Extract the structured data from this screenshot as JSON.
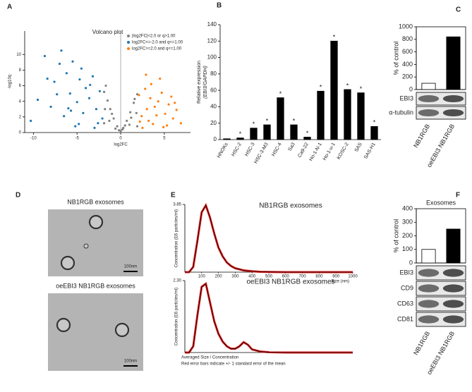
{
  "chart_data": [
    {
      "type": "scatter",
      "panel": "A",
      "title": "Volcano plot",
      "xlabel": "log2FC",
      "ylabel": "-log10q",
      "xlim": [
        -11,
        8
      ],
      "ylim": [
        0,
        13
      ],
      "xticks": [
        -10,
        -5,
        0,
        5
      ],
      "yticks": [
        0,
        2,
        4,
        6,
        8,
        10
      ],
      "legend": "top-right",
      "series": [
        {
          "name": "|log2FC|<2.0 or q>1.00",
          "color": "#808080",
          "x": [
            -1.9,
            -1.5,
            -1.2,
            -0.8,
            -0.4,
            0,
            0.3,
            0.7,
            1.1,
            1.5,
            1.9,
            -1.8,
            -1.3,
            -0.6,
            0.5,
            1.2,
            1.8,
            -1.7,
            -1,
            1,
            1.6,
            -0.2,
            0.2,
            -1.9,
            1.9
          ],
          "values": [
            5.2,
            4.1,
            3.0,
            1.8,
            0.8,
            0.2,
            0.6,
            1.5,
            2.6,
            3.8,
            4.9,
            3.0,
            1.5,
            0.5,
            0.9,
            1.9,
            2.5,
            6.0,
            2.4,
            1.0,
            4.3,
            0.3,
            0.4,
            1.2,
            0.8
          ]
        },
        {
          "name": "log2FC<=-2.0 and q<=1.00",
          "color": "#1f77b4",
          "x": [
            -10.3,
            -9.5,
            -8.7,
            -8,
            -7.6,
            -7,
            -6.5,
            -6.2,
            -5.8,
            -5.5,
            -5,
            -4.7,
            -4.3,
            -4,
            -3.6,
            -3.2,
            -2.8,
            -2.4,
            -2.1,
            -6.8,
            -5.2,
            -4.5,
            -3.5,
            -2.6,
            -7.3,
            -6,
            -3,
            -8.4,
            -4.8,
            -5.7
          ],
          "values": [
            1.5,
            4.2,
            9.8,
            3.3,
            6.5,
            8.8,
            2.1,
            7.6,
            5.0,
            9.1,
            3.9,
            6.8,
            2.5,
            5.7,
            4.4,
            7.2,
            3.0,
            5.3,
            1.8,
            10.5,
            0.8,
            8.2,
            6.1,
            1.2,
            4.9,
            3.1,
            0.6,
            6.9,
            1.1,
            2.8
          ]
        },
        {
          "name": "log2FC>=2.0 and q<=1.00",
          "color": "#ff7f0e",
          "x": [
            2.1,
            2.4,
            2.8,
            3.2,
            3.5,
            3.9,
            4.3,
            4.7,
            5.1,
            5.5,
            6,
            6.4,
            6.9,
            2.5,
            3,
            3.7,
            4.5,
            5.3,
            5.8,
            2.2,
            3.4,
            4.1,
            4.9,
            6.2,
            2.9
          ],
          "values": [
            4.8,
            2.1,
            5.6,
            1.5,
            6.2,
            3.3,
            4.0,
            5.1,
            2.4,
            3.6,
            1.8,
            2.9,
            1.2,
            0.6,
            3.0,
            1.1,
            6.9,
            0.9,
            4.6,
            1.4,
            4.4,
            2.2,
            0.7,
            3.8,
            7.4
          ]
        }
      ]
    },
    {
      "type": "bar",
      "panel": "B",
      "ylabel": "Relative expression",
      "ylabel_sub": "(EBI3/GAPDH)",
      "categories": [
        "HNOKs",
        "HSC-2",
        "HSC-3",
        "HSC-3-M3",
        "HSC-4",
        "Sa3",
        "Ca9-22",
        "Ho-1-N-1",
        "Ho-1-u-1",
        "KOSC-2",
        "SAS",
        "SAS-H1"
      ],
      "values": [
        1,
        2,
        14,
        18,
        51,
        18,
        3,
        59,
        120,
        61,
        57,
        16
      ],
      "color": "#000000",
      "significance": [
        null,
        "*",
        "*",
        "*",
        "*",
        "*",
        "*",
        "*",
        "*",
        "*",
        "*",
        "*"
      ],
      "ylim": [
        0,
        140
      ],
      "yticks": [
        0,
        20,
        40,
        60,
        80,
        100,
        120,
        140
      ]
    },
    {
      "type": "bar",
      "panel": "C",
      "ylabel": "% of control",
      "categories": [
        "NB1RGB",
        "oeEBI3 NB1RGB"
      ],
      "values": [
        100,
        840
      ],
      "colors": [
        "#ffffff",
        "#000000"
      ],
      "ylim": [
        0,
        1000
      ],
      "yticks": [
        0,
        200,
        400,
        600,
        800,
        1000
      ],
      "blot_labels": [
        "EBI3",
        "α-tubulin"
      ]
    },
    {
      "type": "image",
      "panel": "D",
      "titles": [
        "NB1RGB exosomes",
        "oeEBI3 NB1RGB exosomes"
      ],
      "scale_label": "100nm"
    },
    {
      "type": "line",
      "panel": "E",
      "title": "NB1RGB exosomes",
      "ylabel": "Concentration (E6 particles/ml)",
      "xlabel": "Size (nm)",
      "xlim": [
        0,
        1000
      ],
      "ylim": [
        0,
        3.85
      ],
      "xticks": [
        100,
        200,
        300,
        400,
        500,
        600,
        700,
        800,
        900,
        1000
      ],
      "yticks": [
        3.85
      ],
      "line_color": "#000000",
      "x": [
        0,
        25,
        50,
        75,
        100,
        125,
        150,
        175,
        200,
        225,
        250,
        275,
        300,
        350,
        400,
        450,
        500,
        600,
        700,
        800,
        900,
        1000
      ],
      "series": [
        {
          "color": "#e02020",
          "values": [
            0,
            0,
            0.3,
            1.8,
            3.4,
            3.8,
            3.1,
            2.2,
            1.4,
            0.9,
            0.55,
            0.35,
            0.22,
            0.1,
            0.05,
            0.02,
            0.01,
            0,
            0,
            0,
            0,
            0
          ]
        }
      ]
    },
    {
      "type": "line",
      "title": "oeEBI3 NB1RGB exosomes",
      "ylabel": "Concentration (E6 particles/ml)",
      "xlabel": "Averaged Size / Concentration",
      "notes": [
        "Red error bars indicate +/- 1 standard error of the mean"
      ],
      "xlim": [
        0,
        1000
      ],
      "ylim": [
        0,
        2.3
      ],
      "yticks": [
        {
          "value": 2.3,
          "label": "2.30"
        }
      ],
      "line_color": "#000000",
      "x": [
        0,
        25,
        50,
        75,
        100,
        125,
        150,
        175,
        200,
        225,
        250,
        275,
        300,
        325,
        350,
        375,
        400,
        450,
        500,
        600,
        700,
        800,
        900,
        1000
      ],
      "series": [
        {
          "color": "#e02020",
          "values": [
            0,
            0,
            0.2,
            1.2,
            2.1,
            2.2,
            1.6,
            1.0,
            0.6,
            0.35,
            0.2,
            0.12,
            0.12,
            0.2,
            0.33,
            0.25,
            0.1,
            0.03,
            0.01,
            0,
            0,
            0,
            0,
            0
          ]
        }
      ]
    },
    {
      "type": "bar",
      "panel": "F",
      "title": "Exosomes",
      "ylabel": "% of control",
      "categories": [
        "NB1RGB",
        "oeEBI3 NB1RGB"
      ],
      "values": [
        100,
        250
      ],
      "colors": [
        "#ffffff",
        "#000000"
      ],
      "ylim": [
        0,
        400
      ],
      "yticks": [
        0,
        100,
        200,
        300,
        400
      ],
      "blot_labels": [
        "EBI3",
        "CD9",
        "CD63",
        "CD81"
      ]
    }
  ]
}
